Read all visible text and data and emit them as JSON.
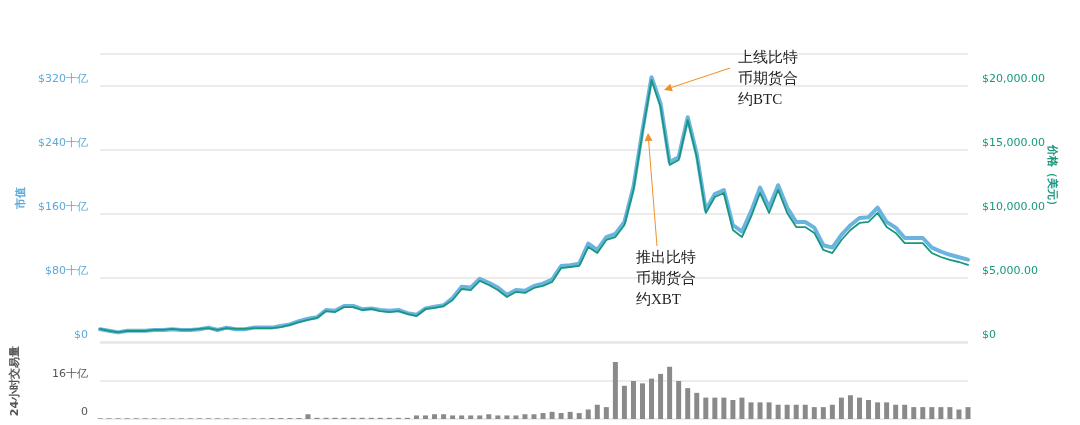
{
  "chart_data": [
    {
      "type": "line",
      "categories": [
        null,
        null,
        null,
        null,
        null,
        null,
        null,
        null,
        null,
        null,
        null,
        null,
        null,
        null,
        null,
        null,
        null,
        null,
        null,
        null,
        null,
        null,
        null,
        null,
        null,
        null,
        null,
        null,
        null,
        null,
        null,
        null,
        null,
        null,
        null,
        null,
        null,
        null,
        null,
        null,
        null,
        null,
        null,
        null,
        null,
        null,
        null,
        null,
        null,
        null,
        null,
        null,
        null,
        null,
        null,
        null,
        null,
        null,
        null,
        null,
        null,
        null,
        null,
        null,
        null,
        null,
        null,
        null,
        null,
        null,
        null,
        null,
        null,
        null,
        null,
        null,
        null,
        null,
        null,
        null,
        null,
        null,
        null,
        null,
        null,
        null,
        null,
        null,
        null,
        null,
        null,
        null,
        null,
        null,
        null,
        null,
        null
      ],
      "ylabel": "市值",
      "y2label": "价格（美元）",
      "ylim": [
        0,
        360
      ],
      "yticks": [
        {
          "value": 0,
          "label": "$0"
        },
        {
          "value": 80,
          "label": "$80十亿"
        },
        {
          "value": 160,
          "label": "$160十亿"
        },
        {
          "value": 240,
          "label": "$240十亿"
        },
        {
          "value": 320,
          "label": "$320十亿"
        }
      ],
      "y2lim": [
        0,
        22500
      ],
      "y2ticks": [
        {
          "value": 0,
          "label": "$0"
        },
        {
          "value": 5000,
          "label": "$5,000.00"
        },
        {
          "value": 10000,
          "label": "$10,000.00"
        },
        {
          "value": 15000,
          "label": "$15,000.00"
        },
        {
          "value": 20000,
          "label": "$20,000.00"
        }
      ],
      "grid": "y",
      "series": [
        {
          "color": "#6cb4e0",
          "values": [
            16,
            14,
            12,
            14,
            14,
            14,
            15,
            15,
            16,
            15,
            15,
            16,
            18,
            15,
            18,
            16,
            16,
            18,
            18,
            18,
            20,
            22,
            26,
            29,
            31,
            40,
            39,
            45,
            45,
            41,
            42,
            40,
            39,
            40,
            36,
            34,
            42,
            44,
            46,
            55,
            69,
            68,
            79,
            74,
            68,
            59,
            65,
            64,
            70,
            73,
            78,
            95,
            96,
            98,
            123,
            115,
            131,
            135,
            150,
            194,
            265,
            331,
            298,
            225,
            231,
            281,
            235,
            165,
            185,
            190,
            146,
            138,
            163,
            193,
            168,
            196,
            168,
            150,
            150,
            143,
            121,
            118,
            134,
            146,
            155,
            156,
            168,
            150,
            143,
            130,
            130,
            130,
            118,
            113,
            109,
            106,
            103
          ]
        },
        {
          "color": "#18977f",
          "axis": "y2",
          "values": [
            1020,
            860,
            780,
            860,
            860,
            860,
            940,
            940,
            1020,
            940,
            940,
            1020,
            1090,
            940,
            1090,
            1020,
            1020,
            1090,
            1090,
            1090,
            1170,
            1330,
            1560,
            1720,
            1880,
            2420,
            2340,
            2730,
            2730,
            2500,
            2580,
            2420,
            2340,
            2420,
            2190,
            2030,
            2580,
            2660,
            2810,
            3280,
            4140,
            4060,
            4770,
            4450,
            4060,
            3520,
            3910,
            3830,
            4220,
            4380,
            4690,
            5780,
            5860,
            5940,
            7420,
            6950,
            7970,
            8200,
            9140,
            11880,
            16330,
            20470,
            18360,
            13830,
            14220,
            17340,
            14450,
            10080,
            11330,
            11640,
            8750,
            8200,
            9770,
            11640,
            10080,
            11880,
            10080,
            8980,
            8980,
            8520,
            7190,
            6950,
            7970,
            8750,
            9300,
            9380,
            10080,
            8980,
            8520,
            7730,
            7730,
            7730,
            6950,
            6640,
            6410,
            6250,
            6020
          ]
        }
      ],
      "annotations": [
        "上线比特币期货合约BTC",
        "推出比特币期货合约XBT"
      ]
    },
    {
      "type": "bar",
      "categories": [
        null,
        null,
        null,
        null,
        null,
        null,
        null,
        null,
        null,
        null,
        null,
        null,
        null,
        null,
        null,
        null,
        null,
        null,
        null,
        null,
        null,
        null,
        null,
        null,
        null,
        null,
        null,
        null,
        null,
        null,
        null,
        null,
        null,
        null,
        null,
        null,
        null,
        null,
        null,
        null,
        null,
        null,
        null,
        null,
        null,
        null,
        null,
        null,
        null,
        null,
        null,
        null,
        null,
        null,
        null,
        null,
        null,
        null,
        null,
        null,
        null,
        null,
        null,
        null,
        null,
        null,
        null,
        null,
        null,
        null,
        null,
        null,
        null,
        null,
        null,
        null,
        null,
        null,
        null,
        null,
        null,
        null,
        null,
        null,
        null,
        null,
        null,
        null,
        null,
        null,
        null,
        null,
        null,
        null,
        null,
        null,
        null
      ],
      "ylabel": "24小时交易量",
      "ylim": [
        0,
        32
      ],
      "yticks": [
        0,
        {
          "value": 16,
          "label": "16十亿"
        }
      ],
      "grid": "y",
      "color": "#8a8a8a",
      "values": [
        0.3,
        0.3,
        0.3,
        0.3,
        0.3,
        0.3,
        0.3,
        0.3,
        0.3,
        0.3,
        0.3,
        0.3,
        0.3,
        0.3,
        0.3,
        0.3,
        0.3,
        0.3,
        0.3,
        0.4,
        0.4,
        0.4,
        0.4,
        2,
        0.5,
        0.5,
        0.5,
        0.5,
        0.5,
        0.5,
        0.5,
        0.5,
        0.5,
        0.5,
        0.5,
        1.5,
        1.5,
        2,
        2,
        1.5,
        1.5,
        1.5,
        1.5,
        2,
        1.5,
        1.5,
        1.5,
        2,
        2,
        2.5,
        3,
        2.5,
        3,
        2.5,
        4,
        6,
        5,
        24,
        14,
        16,
        15,
        17,
        19,
        22,
        16,
        13,
        11,
        9,
        9,
        9,
        8,
        9,
        7,
        7,
        7,
        6,
        6,
        6,
        6,
        5,
        5,
        6,
        9,
        10,
        9,
        8,
        7,
        7,
        6,
        6,
        5,
        5,
        5,
        5,
        5,
        4,
        5
      ]
    }
  ]
}
